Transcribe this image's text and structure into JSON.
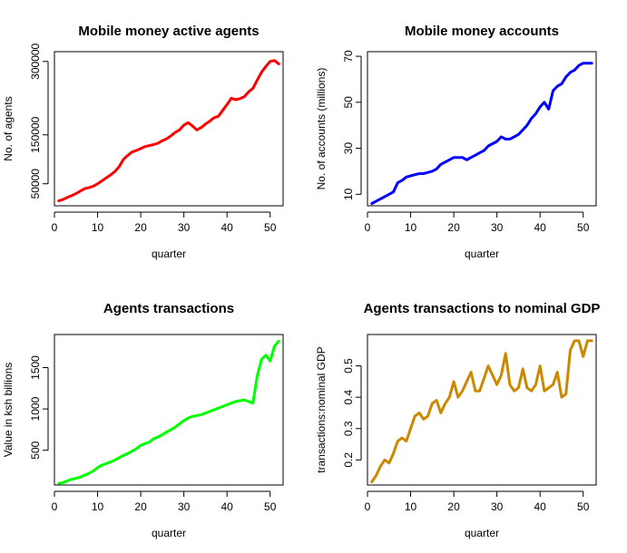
{
  "chart_data": [
    {
      "type": "line",
      "title": "Mobile money active agents",
      "xlabel": "quarter",
      "ylabel": "No. of agents",
      "xlim": [
        0,
        53
      ],
      "ylim": [
        5000,
        320000
      ],
      "xticks": [
        0,
        10,
        20,
        30,
        40,
        50
      ],
      "yticks": [
        50000,
        150000,
        300000
      ],
      "color": "#ff0000",
      "x": [
        1,
        2,
        3,
        4,
        5,
        6,
        7,
        8,
        9,
        10,
        11,
        12,
        13,
        14,
        15,
        16,
        17,
        18,
        19,
        20,
        21,
        22,
        23,
        24,
        25,
        26,
        27,
        28,
        29,
        30,
        31,
        32,
        33,
        34,
        35,
        36,
        37,
        38,
        39,
        40,
        41,
        42,
        43,
        44,
        45,
        46,
        47,
        48,
        49,
        50,
        51,
        52
      ],
      "y": [
        15000,
        18000,
        22000,
        26000,
        30000,
        35000,
        40000,
        42000,
        45000,
        50000,
        56000,
        62000,
        68000,
        75000,
        85000,
        100000,
        108000,
        115000,
        118000,
        122000,
        126000,
        128000,
        130000,
        133000,
        138000,
        142000,
        148000,
        155000,
        160000,
        170000,
        175000,
        168000,
        160000,
        165000,
        172000,
        178000,
        185000,
        188000,
        200000,
        212000,
        225000,
        222000,
        224000,
        228000,
        238000,
        245000,
        262000,
        278000,
        290000,
        300000,
        302000,
        295000
      ]
    },
    {
      "type": "line",
      "title": "Mobile money accounts",
      "xlabel": "quarter",
      "ylabel": "No. of accounts (millions)",
      "xlim": [
        0,
        53
      ],
      "ylim": [
        5,
        72
      ],
      "xticks": [
        0,
        10,
        20,
        30,
        40,
        50
      ],
      "yticks": [
        10,
        30,
        50,
        70
      ],
      "color": "#0000ff",
      "x": [
        1,
        2,
        3,
        4,
        5,
        6,
        7,
        8,
        9,
        10,
        11,
        12,
        13,
        14,
        15,
        16,
        17,
        18,
        19,
        20,
        21,
        22,
        23,
        24,
        25,
        26,
        27,
        28,
        29,
        30,
        31,
        32,
        33,
        34,
        35,
        36,
        37,
        38,
        39,
        40,
        41,
        42,
        43,
        44,
        45,
        46,
        47,
        48,
        49,
        50,
        51,
        52
      ],
      "y": [
        6,
        7,
        8,
        9,
        10,
        11,
        15,
        16,
        17.5,
        18,
        18.5,
        19,
        19,
        19.5,
        20,
        21,
        23,
        24,
        25,
        26,
        26,
        26,
        25,
        26,
        27,
        28,
        29,
        31,
        32,
        33,
        35,
        34,
        34,
        35,
        36,
        38,
        40,
        43,
        45,
        48,
        50,
        47,
        55,
        57,
        58,
        61,
        63,
        64,
        66,
        67,
        67,
        67
      ]
    },
    {
      "type": "line",
      "title": "Agents transactions",
      "xlabel": "quarter",
      "ylabel": "Value in ksh billions",
      "xlim": [
        0,
        53
      ],
      "ylim": [
        80,
        1900
      ],
      "xticks": [
        0,
        10,
        20,
        30,
        40,
        50
      ],
      "yticks": [
        500,
        1000,
        1500
      ],
      "color": "#00ff00",
      "x": [
        1,
        2,
        3,
        4,
        5,
        6,
        7,
        8,
        9,
        10,
        11,
        12,
        13,
        14,
        15,
        16,
        17,
        18,
        19,
        20,
        21,
        22,
        23,
        24,
        25,
        26,
        27,
        28,
        29,
        30,
        31,
        32,
        33,
        34,
        35,
        36,
        37,
        38,
        39,
        40,
        41,
        42,
        43,
        44,
        45,
        46,
        47,
        48,
        49,
        50,
        51,
        52
      ],
      "y": [
        100,
        110,
        130,
        150,
        160,
        175,
        200,
        220,
        250,
        290,
        320,
        340,
        360,
        380,
        410,
        440,
        460,
        490,
        520,
        560,
        580,
        600,
        640,
        660,
        690,
        720,
        750,
        780,
        820,
        860,
        890,
        910,
        920,
        930,
        950,
        970,
        990,
        1010,
        1030,
        1050,
        1070,
        1090,
        1100,
        1110,
        1090,
        1070,
        1400,
        1600,
        1650,
        1580,
        1760,
        1820
      ]
    },
    {
      "type": "line",
      "title": "Agents transactions to nominal GDP",
      "xlabel": "quarter",
      "ylabel": "transactions:nominal GDP",
      "xlim": [
        0,
        53
      ],
      "ylim": [
        0.12,
        0.6
      ],
      "xticks": [
        0,
        10,
        20,
        30,
        40,
        50
      ],
      "yticks": [
        0.2,
        0.3,
        0.4,
        0.5
      ],
      "color": "#cc8800",
      "x": [
        1,
        2,
        3,
        4,
        5,
        6,
        7,
        8,
        9,
        10,
        11,
        12,
        13,
        14,
        15,
        16,
        17,
        18,
        19,
        20,
        21,
        22,
        23,
        24,
        25,
        26,
        27,
        28,
        29,
        30,
        31,
        32,
        33,
        34,
        35,
        36,
        37,
        38,
        39,
        40,
        41,
        42,
        43,
        44,
        45,
        46,
        47,
        48,
        49,
        50,
        51,
        52
      ],
      "y": [
        0.13,
        0.15,
        0.18,
        0.2,
        0.19,
        0.22,
        0.26,
        0.27,
        0.26,
        0.3,
        0.34,
        0.35,
        0.33,
        0.34,
        0.38,
        0.39,
        0.35,
        0.38,
        0.4,
        0.45,
        0.4,
        0.42,
        0.45,
        0.48,
        0.42,
        0.42,
        0.46,
        0.5,
        0.47,
        0.44,
        0.47,
        0.54,
        0.44,
        0.42,
        0.43,
        0.49,
        0.43,
        0.42,
        0.44,
        0.5,
        0.42,
        0.43,
        0.44,
        0.48,
        0.4,
        0.41,
        0.55,
        0.58,
        0.58,
        0.53,
        0.58,
        0.58
      ]
    }
  ]
}
